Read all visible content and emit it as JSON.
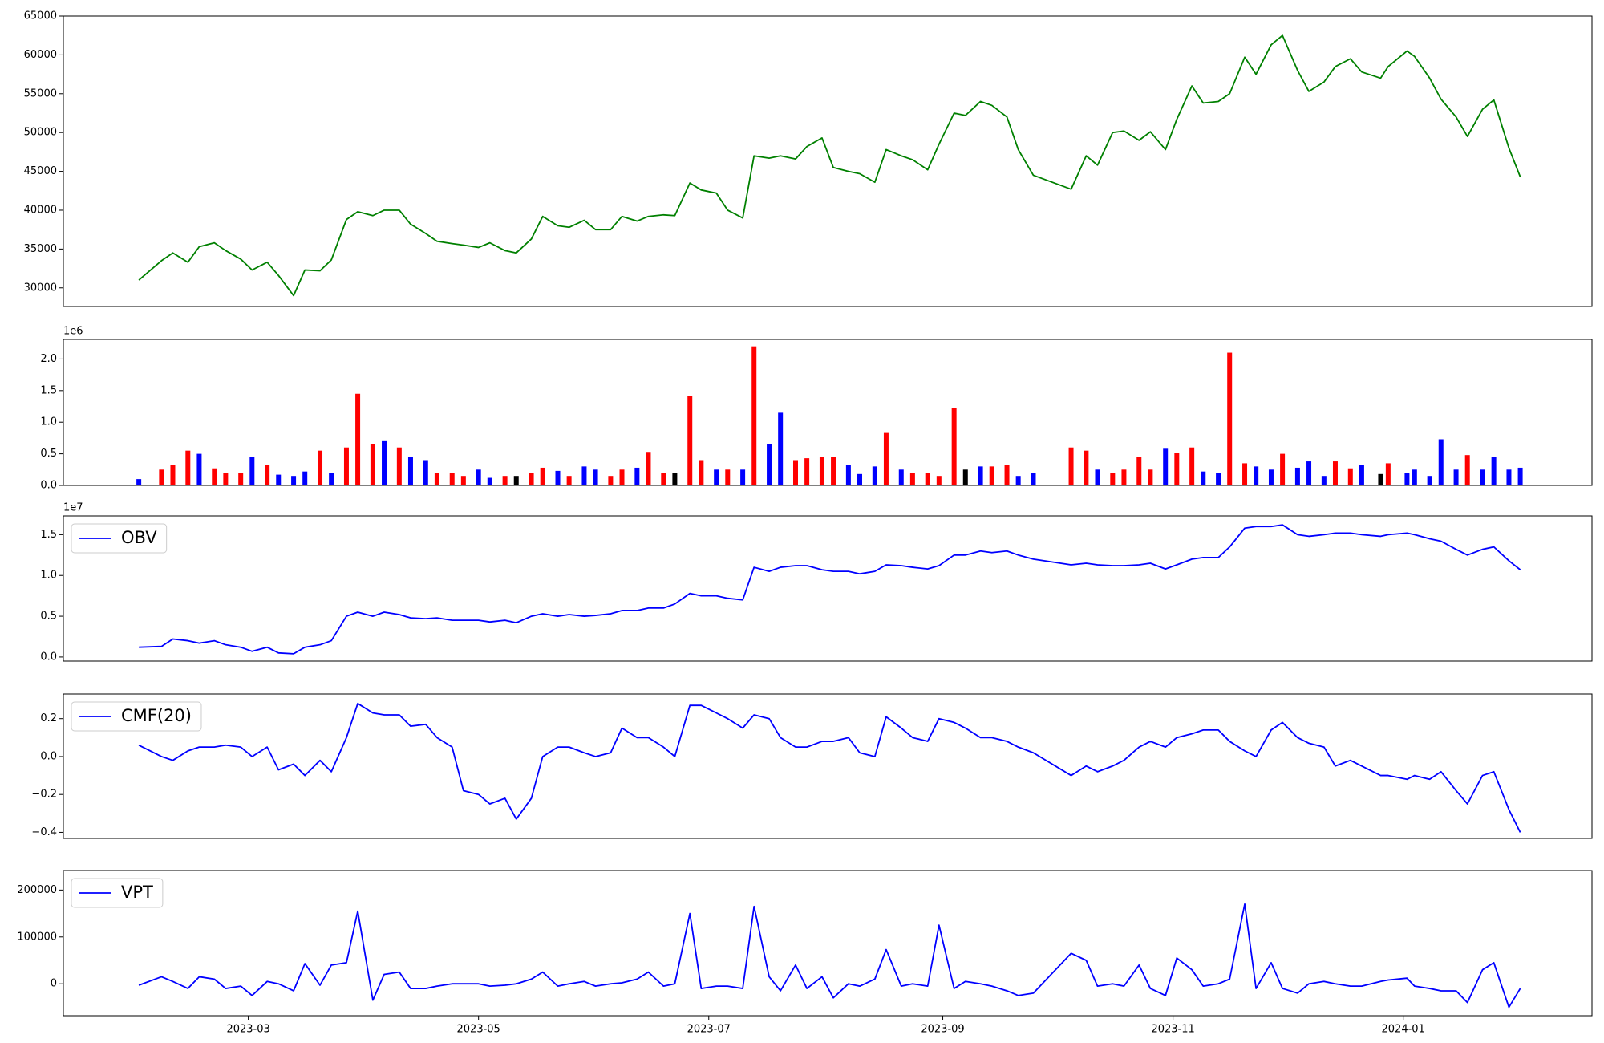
{
  "chart_data": {
    "type": "multi-panel",
    "x": [
      "2023-01-31",
      "2023-02-06",
      "2023-02-09",
      "2023-02-13",
      "2023-02-16",
      "2023-02-20",
      "2023-02-23",
      "2023-02-27",
      "2023-03-02",
      "2023-03-06",
      "2023-03-09",
      "2023-03-13",
      "2023-03-16",
      "2023-03-20",
      "2023-03-23",
      "2023-03-27",
      "2023-03-30",
      "2023-04-03",
      "2023-04-06",
      "2023-04-10",
      "2023-04-13",
      "2023-04-17",
      "2023-04-20",
      "2023-04-24",
      "2023-04-27",
      "2023-05-01",
      "2023-05-04",
      "2023-05-08",
      "2023-05-11",
      "2023-05-15",
      "2023-05-18",
      "2023-05-22",
      "2023-05-25",
      "2023-05-29",
      "2023-06-01",
      "2023-06-05",
      "2023-06-08",
      "2023-06-12",
      "2023-06-15",
      "2023-06-19",
      "2023-06-22",
      "2023-06-26",
      "2023-06-29",
      "2023-07-03",
      "2023-07-06",
      "2023-07-10",
      "2023-07-13",
      "2023-07-17",
      "2023-07-20",
      "2023-07-24",
      "2023-07-27",
      "2023-07-31",
      "2023-08-03",
      "2023-08-07",
      "2023-08-10",
      "2023-08-14",
      "2023-08-17",
      "2023-08-21",
      "2023-08-24",
      "2023-08-28",
      "2023-08-31",
      "2023-09-04",
      "2023-09-07",
      "2023-09-11",
      "2023-09-14",
      "2023-09-18",
      "2023-09-21",
      "2023-09-25",
      "2023-10-05",
      "2023-10-09",
      "2023-10-12",
      "2023-10-16",
      "2023-10-19",
      "2023-10-23",
      "2023-10-26",
      "2023-10-30",
      "2023-11-02",
      "2023-11-06",
      "2023-11-09",
      "2023-11-13",
      "2023-11-16",
      "2023-11-20",
      "2023-11-23",
      "2023-11-27",
      "2023-11-30",
      "2023-12-04",
      "2023-12-07",
      "2023-12-11",
      "2023-12-14",
      "2023-12-18",
      "2023-12-21",
      "2023-12-26",
      "2023-12-28",
      "2024-01-02",
      "2024-01-04",
      "2024-01-08",
      "2024-01-11",
      "2024-01-15",
      "2024-01-18",
      "2024-01-22",
      "2024-01-25",
      "2024-01-29",
      "2024-02-01"
    ],
    "xlim": [
      "2023-01-11",
      "2024-02-20"
    ],
    "xticks": [
      "2023-03",
      "2023-05",
      "2023-07",
      "2023-09",
      "2023-11",
      "2024-01"
    ],
    "panels": [
      {
        "type": "line",
        "ylim": [
          27600,
          65000
        ],
        "yticks": [
          30000,
          35000,
          40000,
          45000,
          50000,
          55000,
          60000,
          65000
        ],
        "series": [
          {
            "color": "#008000",
            "values": [
              31000,
              33500,
              34500,
              33300,
              35300,
              35800,
              34800,
              33700,
              32300,
              33300,
              31600,
              29000,
              32300,
              32200,
              33600,
              38800,
              39800,
              39300,
              40000,
              40000,
              38200,
              37000,
              36000,
              35700,
              35500,
              35200,
              35800,
              34800,
              34500,
              36300,
              39200,
              38000,
              37800,
              38700,
              37500,
              37500,
              39200,
              38600,
              39200,
              39400,
              39300,
              43500,
              42600,
              42200,
              40000,
              39000,
              47000,
              46700,
              47000,
              46600,
              48200,
              49300,
              45500,
              45000,
              44700,
              43600,
              47800,
              47000,
              46500,
              45200,
              48500,
              52500,
              52200,
              54000,
              53500,
              52000,
              47800,
              44500,
              42700,
              47000,
              45800,
              50000,
              50200,
              49000,
              50100,
              47800,
              51700,
              56000,
              53800,
              54000,
              55000,
              59700,
              57500,
              61300,
              62500,
              58000,
              55300,
              56500,
              58500,
              59500,
              57800,
              57000,
              58500,
              60500,
              59800,
              57000,
              54300,
              52000,
              49500,
              53000,
              54200,
              48000,
              44300
            ]
          }
        ]
      },
      {
        "type": "bar",
        "offset_label": "1e6",
        "ylim": [
          0,
          2.31
        ],
        "yticks": [
          {
            "value": 0,
            "label": "0.0"
          },
          0.5,
          {
            "value": 1,
            "label": "1.0"
          },
          1.5,
          {
            "value": 2,
            "label": "2.0"
          }
        ],
        "values": [
          0.1,
          0.25,
          0.33,
          0.55,
          0.5,
          0.27,
          0.2,
          0.2,
          0.45,
          0.33,
          0.17,
          0.15,
          0.22,
          0.55,
          0.2,
          0.6,
          1.45,
          0.65,
          0.7,
          0.6,
          0.45,
          0.4,
          0.2,
          0.2,
          0.15,
          0.25,
          0.12,
          0.15,
          0.15,
          0.2,
          0.28,
          0.23,
          0.15,
          0.3,
          0.25,
          0.15,
          0.25,
          0.28,
          0.53,
          0.2,
          0.2,
          1.42,
          0.4,
          0.25,
          0.25,
          0.25,
          2.2,
          0.65,
          1.15,
          0.4,
          0.43,
          0.45,
          0.45,
          0.33,
          0.18,
          0.3,
          0.83,
          0.25,
          0.2,
          0.2,
          0.15,
          1.22,
          0.25,
          0.3,
          0.3,
          0.33,
          0.15,
          0.2,
          0.6,
          0.55,
          0.25,
          0.2,
          0.25,
          0.45,
          0.25,
          0.58,
          0.52,
          0.6,
          0.22,
          0.2,
          2.1,
          0.35,
          0.3,
          0.25,
          0.5,
          0.28,
          0.38,
          0.15,
          0.38,
          0.27,
          0.32,
          0.18,
          0.35,
          0.2,
          0.25,
          0.15,
          0.73,
          0.25,
          0.48,
          0.25,
          0.45,
          0.25,
          0.28
        ],
        "colors": [
          "blue",
          "red",
          "red",
          "red",
          "blue",
          "red",
          "red",
          "red",
          "blue",
          "red",
          "blue",
          "blue",
          "blue",
          "red",
          "blue",
          "red",
          "red",
          "red",
          "blue",
          "red",
          "blue",
          "blue",
          "red",
          "red",
          "red",
          "blue",
          "blue",
          "red",
          "black",
          "red",
          "red",
          "blue",
          "red",
          "blue",
          "blue",
          "red",
          "red",
          "blue",
          "red",
          "red",
          "black",
          "red",
          "red",
          "blue",
          "red",
          "blue",
          "red",
          "blue",
          "blue",
          "red",
          "red",
          "red",
          "red",
          "blue",
          "blue",
          "blue",
          "red",
          "blue",
          "red",
          "red",
          "red",
          "red",
          "black",
          "blue",
          "red",
          "red",
          "blue",
          "blue",
          "red",
          "red",
          "blue",
          "red",
          "red",
          "red",
          "red",
          "blue",
          "red",
          "red",
          "blue",
          "blue",
          "red",
          "red",
          "blue",
          "blue",
          "red",
          "blue",
          "blue",
          "blue",
          "red",
          "red",
          "blue",
          "black",
          "red",
          "blue",
          "blue",
          "blue",
          "blue",
          "blue",
          "red",
          "blue",
          "blue",
          "blue",
          "blue"
        ]
      },
      {
        "type": "line",
        "offset_label": "1e7",
        "legend": "upper left",
        "ylim": [
          -0.05,
          1.73
        ],
        "yticks": [
          {
            "value": 0,
            "label": "0.0"
          },
          0.5,
          {
            "value": 1,
            "label": "1.0"
          },
          1.5
        ],
        "series": [
          {
            "name": "OBV",
            "color": "#0000ff",
            "values": [
              0.12,
              0.13,
              0.22,
              0.2,
              0.17,
              0.2,
              0.15,
              0.12,
              0.07,
              0.12,
              0.05,
              0.04,
              0.12,
              0.15,
              0.2,
              0.5,
              0.55,
              0.5,
              0.55,
              0.52,
              0.48,
              0.47,
              0.48,
              0.45,
              0.45,
              0.45,
              0.43,
              0.45,
              0.42,
              0.5,
              0.53,
              0.5,
              0.52,
              0.5,
              0.51,
              0.53,
              0.57,
              0.57,
              0.6,
              0.6,
              0.65,
              0.78,
              0.75,
              0.75,
              0.72,
              0.7,
              1.1,
              1.05,
              1.1,
              1.12,
              1.12,
              1.07,
              1.05,
              1.05,
              1.02,
              1.05,
              1.13,
              1.12,
              1.1,
              1.08,
              1.12,
              1.25,
              1.25,
              1.3,
              1.28,
              1.3,
              1.25,
              1.2,
              1.13,
              1.15,
              1.13,
              1.12,
              1.12,
              1.13,
              1.15,
              1.08,
              1.13,
              1.2,
              1.22,
              1.22,
              1.35,
              1.58,
              1.6,
              1.6,
              1.62,
              1.5,
              1.48,
              1.5,
              1.52,
              1.52,
              1.5,
              1.48,
              1.5,
              1.52,
              1.5,
              1.45,
              1.42,
              1.32,
              1.25,
              1.32,
              1.35,
              1.18,
              1.07
            ]
          }
        ]
      },
      {
        "type": "line",
        "legend": "upper left",
        "ylim": [
          -0.432,
          0.33
        ],
        "yticks": [
          {
            "value": -0.4,
            "label": "−0.4"
          },
          {
            "value": -0.2,
            "label": "−0.2"
          },
          {
            "value": 0,
            "label": "0.0"
          },
          0.2
        ],
        "series": [
          {
            "name": "CMF(20)",
            "color": "#0000ff",
            "values": [
              0.06,
              0.0,
              -0.02,
              0.03,
              0.05,
              0.05,
              0.06,
              0.05,
              0.0,
              0.05,
              -0.07,
              -0.04,
              -0.1,
              -0.02,
              -0.08,
              0.1,
              0.28,
              0.23,
              0.22,
              0.22,
              0.16,
              0.17,
              0.1,
              0.05,
              -0.18,
              -0.2,
              -0.25,
              -0.22,
              -0.33,
              -0.22,
              0.0,
              0.05,
              0.05,
              0.02,
              0.0,
              0.02,
              0.15,
              0.1,
              0.1,
              0.05,
              0.0,
              0.27,
              0.27,
              0.23,
              0.2,
              0.15,
              0.22,
              0.2,
              0.1,
              0.05,
              0.05,
              0.08,
              0.08,
              0.1,
              0.02,
              0.0,
              0.21,
              0.15,
              0.1,
              0.08,
              0.2,
              0.18,
              0.15,
              0.1,
              0.1,
              0.08,
              0.05,
              0.02,
              -0.1,
              -0.05,
              -0.08,
              -0.05,
              -0.02,
              0.05,
              0.08,
              0.05,
              0.1,
              0.12,
              0.14,
              0.14,
              0.08,
              0.03,
              0.0,
              0.14,
              0.18,
              0.1,
              0.07,
              0.05,
              -0.05,
              -0.02,
              -0.05,
              -0.1,
              -0.1,
              -0.12,
              -0.1,
              -0.12,
              -0.08,
              -0.18,
              -0.25,
              -0.1,
              -0.08,
              -0.28,
              -0.4
            ]
          }
        ]
      },
      {
        "type": "line",
        "legend": "upper left",
        "ylim": [
          -68100,
          241700
        ],
        "yticks": [
          0,
          100000,
          200000
        ],
        "series": [
          {
            "name": "VPT",
            "color": "#0000ff",
            "values": [
              -3000,
              15000,
              5000,
              -10000,
              15000,
              10000,
              -10000,
              -5000,
              -25000,
              5000,
              0,
              -15000,
              43000,
              -3000,
              40000,
              45000,
              155000,
              -35000,
              20000,
              25000,
              -10000,
              -10000,
              -5000,
              0,
              0,
              0,
              -5000,
              -3000,
              0,
              10000,
              25000,
              -5000,
              0,
              5000,
              -5000,
              0,
              2000,
              10000,
              25000,
              -5000,
              0,
              150000,
              -10000,
              -5000,
              -5000,
              -10000,
              165000,
              15000,
              -15000,
              40000,
              -10000,
              15000,
              -30000,
              0,
              -5000,
              10000,
              73000,
              -5000,
              0,
              -5000,
              125000,
              -10000,
              5000,
              0,
              -5000,
              -15000,
              -25000,
              -20000,
              65000,
              50000,
              -5000,
              0,
              -5000,
              40000,
              -10000,
              -25000,
              55000,
              30000,
              -5000,
              0,
              10000,
              170000,
              -10000,
              45000,
              -10000,
              -20000,
              0,
              5000,
              0,
              -5000,
              -5000,
              5000,
              8000,
              12000,
              -5000,
              -10000,
              -15000,
              -15000,
              -40000,
              30000,
              45000,
              -50000,
              -10000
            ]
          }
        ]
      }
    ]
  }
}
